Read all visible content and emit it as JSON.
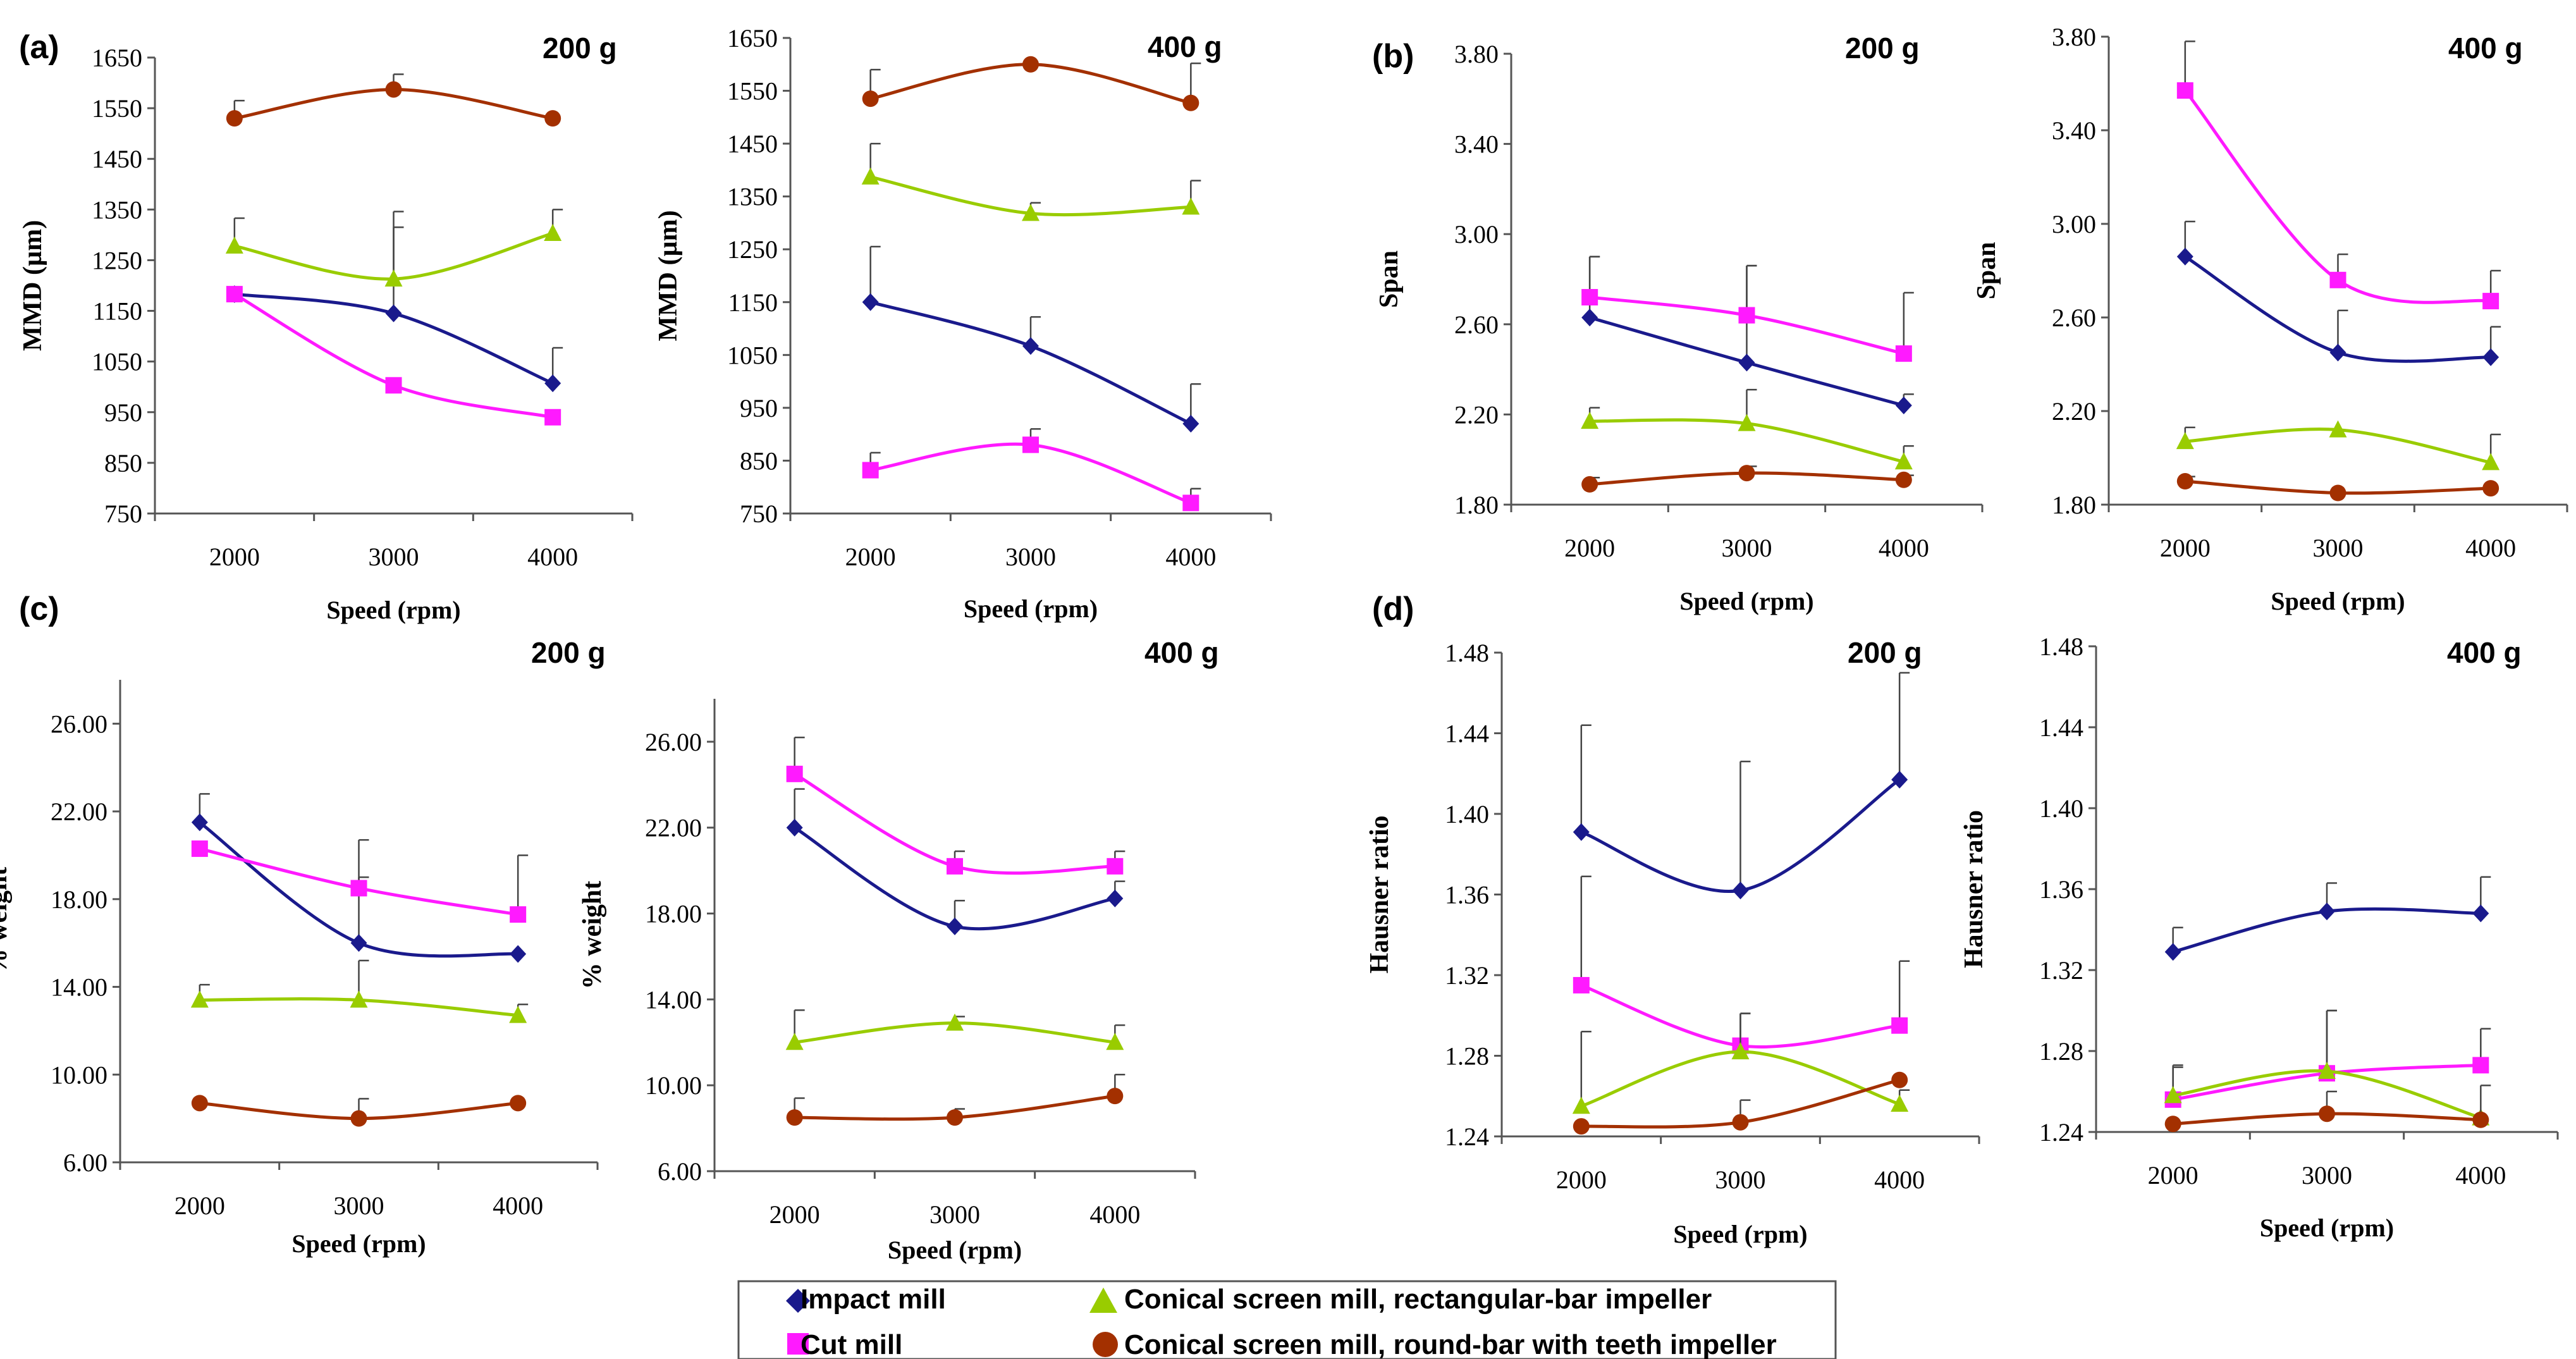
{
  "figure": {
    "panels": [
      {
        "id": "a",
        "label": "(a)"
      },
      {
        "id": "b",
        "label": "(b)"
      },
      {
        "id": "c",
        "label": "(c)"
      },
      {
        "id": "d",
        "label": "(d)"
      }
    ]
  },
  "legend": {
    "items": [
      {
        "key": "impact",
        "label": "Impact mill",
        "color": "#1a1a8c",
        "marker": "diamond"
      },
      {
        "key": "cut",
        "label": "Cut mill",
        "color": "#ff1aff",
        "marker": "square"
      },
      {
        "key": "conical_rect",
        "label": "Conical screen mill, rectangular-bar impeller",
        "color": "#99cc00",
        "marker": "triangle"
      },
      {
        "key": "conical_round",
        "label": "Conical screen mill, round-bar with teeth impeller",
        "color": "#a33000",
        "marker": "circle"
      }
    ]
  },
  "chart_data": [
    {
      "type": "line",
      "panel": "a",
      "tag": "200 g",
      "xlabel": "Speed (rpm)",
      "ylabel": "MMD (µm)",
      "categories": [
        "2000",
        "3000",
        "4000"
      ],
      "ylim": [
        750,
        1650
      ],
      "yticks": [
        "750",
        "850",
        "950",
        "1050",
        "1150",
        "1250",
        "1350",
        "1450",
        "1550",
        "1650"
      ],
      "series": [
        {
          "key": "impact",
          "values": [
            1183,
            1145,
            1007
          ],
          "err": [
            0,
            170,
            70
          ]
        },
        {
          "key": "cut",
          "values": [
            1183,
            1003,
            940
          ],
          "err": [
            0,
            0,
            0
          ]
        },
        {
          "key": "conical_rect",
          "values": [
            1278,
            1213,
            1303
          ],
          "err": [
            55,
            133,
            47
          ]
        },
        {
          "key": "conical_round",
          "values": [
            1530,
            1587,
            1530
          ],
          "err": [
            35,
            30,
            0
          ]
        }
      ]
    },
    {
      "type": "line",
      "panel": "a",
      "tag": "400 g",
      "xlabel": "Speed (rpm)",
      "ylabel": "MMD (µm)",
      "categories": [
        "2000",
        "3000",
        "4000"
      ],
      "ylim": [
        750,
        1650
      ],
      "yticks": [
        "750",
        "850",
        "950",
        "1050",
        "1150",
        "1250",
        "1350",
        "1450",
        "1550",
        "1650"
      ],
      "series": [
        {
          "key": "impact",
          "values": [
            1150,
            1067,
            920
          ],
          "err": [
            105,
            55,
            75
          ]
        },
        {
          "key": "cut",
          "values": [
            832,
            880,
            770
          ],
          "err": [
            33,
            30,
            27
          ]
        },
        {
          "key": "conical_rect",
          "values": [
            1387,
            1318,
            1330
          ],
          "err": [
            63,
            20,
            50
          ]
        },
        {
          "key": "conical_round",
          "values": [
            1535,
            1600,
            1527
          ],
          "err": [
            55,
            0,
            75
          ]
        }
      ]
    },
    {
      "type": "line",
      "panel": "b",
      "tag": "200 g",
      "xlabel": "Speed (rpm)",
      "ylabel": "Span",
      "categories": [
        "2000",
        "3000",
        "4000"
      ],
      "ylim": [
        1.8,
        3.8
      ],
      "yticks": [
        "1.80",
        "2.20",
        "2.60",
        "3.00",
        "3.40",
        "3.80"
      ],
      "series": [
        {
          "key": "impact",
          "values": [
            2.63,
            2.43,
            2.24
          ],
          "err": [
            0.27,
            0.43,
            0.05
          ]
        },
        {
          "key": "cut",
          "values": [
            2.72,
            2.64,
            2.47
          ],
          "err": [
            0.18,
            0.22,
            0.27
          ]
        },
        {
          "key": "conical_rect",
          "values": [
            2.17,
            2.16,
            1.99
          ],
          "err": [
            0.06,
            0.15,
            0.07
          ]
        },
        {
          "key": "conical_round",
          "values": [
            1.89,
            1.94,
            1.91
          ],
          "err": [
            0.03,
            0.03,
            0.02
          ]
        }
      ]
    },
    {
      "type": "line",
      "panel": "b",
      "tag": "400 g",
      "xlabel": "Speed (rpm)",
      "ylabel": "Span",
      "categories": [
        "2000",
        "3000",
        "4000"
      ],
      "ylim": [
        1.8,
        3.8
      ],
      "yticks": [
        "1.80",
        "2.20",
        "2.60",
        "3.00",
        "3.40",
        "3.80"
      ],
      "series": [
        {
          "key": "impact",
          "values": [
            2.86,
            2.45,
            2.43
          ],
          "err": [
            0.15,
            0.18,
            0.13
          ]
        },
        {
          "key": "cut",
          "values": [
            3.57,
            2.76,
            2.67
          ],
          "err": [
            0.21,
            0.11,
            0.13
          ]
        },
        {
          "key": "conical_rect",
          "values": [
            2.07,
            2.12,
            1.98
          ],
          "err": [
            0.06,
            0,
            0.12
          ]
        },
        {
          "key": "conical_round",
          "values": [
            1.9,
            1.85,
            1.87
          ],
          "err": [
            0.02,
            0,
            0
          ]
        }
      ]
    },
    {
      "type": "line",
      "panel": "c",
      "tag": "200 g",
      "xlabel": "Speed (rpm)",
      "ylabel": "% weight",
      "categories": [
        "2000",
        "3000",
        "4000"
      ],
      "ylim": [
        6,
        28
      ],
      "yticks": [
        "6.00",
        "10.00",
        "14.00",
        "18.00",
        "22.00",
        "26.00"
      ],
      "series": [
        {
          "key": "impact",
          "values": [
            21.5,
            16.0,
            15.5
          ],
          "err": [
            1.3,
            3.0,
            0
          ]
        },
        {
          "key": "cut",
          "values": [
            20.3,
            18.5,
            17.3
          ],
          "err": [
            0,
            2.2,
            2.7
          ]
        },
        {
          "key": "conical_rect",
          "values": [
            13.4,
            13.4,
            12.7
          ],
          "err": [
            0.7,
            1.8,
            0.5
          ]
        },
        {
          "key": "conical_round",
          "values": [
            8.7,
            8.0,
            8.7
          ],
          "err": [
            0,
            0.9,
            0
          ]
        }
      ]
    },
    {
      "type": "line",
      "panel": "c",
      "tag": "400 g",
      "xlabel": "Speed (rpm)",
      "ylabel": "% weight",
      "categories": [
        "2000",
        "3000",
        "4000"
      ],
      "ylim": [
        6,
        28
      ],
      "yticks": [
        "6.00",
        "10.00",
        "14.00",
        "18.00",
        "22.00",
        "26.00"
      ],
      "series": [
        {
          "key": "impact",
          "values": [
            22.0,
            17.4,
            18.7
          ],
          "err": [
            1.8,
            1.2,
            0.8
          ]
        },
        {
          "key": "cut",
          "values": [
            24.5,
            20.2,
            20.2
          ],
          "err": [
            1.7,
            0.7,
            0.7
          ]
        },
        {
          "key": "conical_rect",
          "values": [
            12.0,
            12.9,
            12.0
          ],
          "err": [
            1.5,
            0.3,
            0.8
          ]
        },
        {
          "key": "conical_round",
          "values": [
            8.5,
            8.5,
            9.5
          ],
          "err": [
            0.9,
            0.4,
            1.0
          ]
        }
      ]
    },
    {
      "type": "line",
      "panel": "d",
      "tag": "200 g",
      "xlabel": "Speed (rpm)",
      "ylabel": "Hausner ratio",
      "categories": [
        "2000",
        "3000",
        "4000"
      ],
      "ylim": [
        1.24,
        1.48
      ],
      "yticks": [
        "1.24",
        "1.28",
        "1.32",
        "1.36",
        "1.40",
        "1.44",
        "1.48"
      ],
      "series": [
        {
          "key": "impact",
          "values": [
            1.391,
            1.362,
            1.417
          ],
          "err": [
            0.053,
            0.064,
            0.053
          ]
        },
        {
          "key": "cut",
          "values": [
            1.315,
            1.285,
            1.295
          ],
          "err": [
            0.054,
            0.016,
            0.032
          ]
        },
        {
          "key": "conical_rect",
          "values": [
            1.255,
            1.282,
            1.256
          ],
          "err": [
            0.037,
            0.019,
            0.007
          ]
        },
        {
          "key": "conical_round",
          "values": [
            1.245,
            1.247,
            1.268
          ],
          "err": [
            0,
            0.011,
            0
          ]
        }
      ]
    },
    {
      "type": "line",
      "panel": "d",
      "tag": "400 g",
      "xlabel": "Speed (rpm)",
      "ylabel": "Hausner ratio",
      "categories": [
        "2000",
        "3000",
        "4000"
      ],
      "ylim": [
        1.24,
        1.48
      ],
      "yticks": [
        "1.24",
        "1.28",
        "1.32",
        "1.36",
        "1.40",
        "1.44",
        "1.48"
      ],
      "series": [
        {
          "key": "impact",
          "values": [
            1.329,
            1.349,
            1.348
          ],
          "err": [
            0.012,
            0.014,
            0.018
          ]
        },
        {
          "key": "cut",
          "values": [
            1.256,
            1.269,
            1.273
          ],
          "err": [
            0.017,
            0.031,
            0.018
          ]
        },
        {
          "key": "conical_rect",
          "values": [
            1.258,
            1.27,
            1.247
          ],
          "err": [
            0.014,
            0.03,
            0
          ]
        },
        {
          "key": "conical_round",
          "values": [
            1.244,
            1.249,
            1.246
          ],
          "err": [
            0,
            0.011,
            0.017
          ]
        }
      ]
    }
  ]
}
